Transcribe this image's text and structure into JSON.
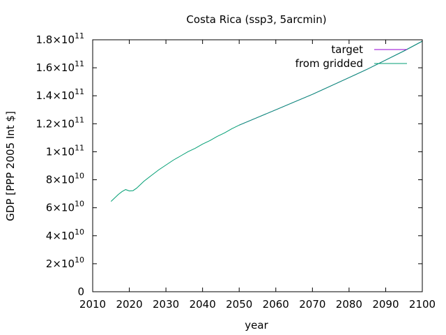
{
  "chart_data": {
    "type": "line",
    "title": "Costa Rica (ssp3, 5arcmin)",
    "xlabel": "year",
    "ylabel": "GDP [PPP 2005 Int $]",
    "xlim": [
      2010,
      2100
    ],
    "ylim": [
      0,
      180000000000
    ],
    "xticks": [
      2010,
      2020,
      2030,
      2040,
      2050,
      2060,
      2070,
      2080,
      2090,
      2100
    ],
    "yticks": [
      {
        "value": 0,
        "mant": "0",
        "exp": ""
      },
      {
        "value": 20000000000,
        "mant": "2×10",
        "exp": "10"
      },
      {
        "value": 40000000000,
        "mant": "4×10",
        "exp": "10"
      },
      {
        "value": 60000000000,
        "mant": "6×10",
        "exp": "10"
      },
      {
        "value": 80000000000,
        "mant": "8×10",
        "exp": "10"
      },
      {
        "value": 100000000000,
        "mant": "1×10",
        "exp": "11"
      },
      {
        "value": 120000000000,
        "mant": "1.2×10",
        "exp": "11"
      },
      {
        "value": 140000000000,
        "mant": "1.4×10",
        "exp": "11"
      },
      {
        "value": 160000000000,
        "mant": "1.6×10",
        "exp": "11"
      },
      {
        "value": 180000000000,
        "mant": "1.8×10",
        "exp": "11"
      }
    ],
    "grid": false,
    "legend_position": "top-right",
    "series": [
      {
        "name": "target",
        "color": "#9400d3",
        "x": [
          2050,
          2055,
          2060,
          2065,
          2070,
          2075,
          2080,
          2085,
          2090,
          2095,
          2100
        ],
        "y": [
          119000000000,
          124500000000,
          130000000000,
          135500000000,
          141000000000,
          147000000000,
          153000000000,
          159000000000,
          165500000000,
          172000000000,
          179000000000
        ]
      },
      {
        "name": "from gridded",
        "color": "#009e73",
        "x": [
          2015,
          2017,
          2018,
          2019,
          2020,
          2021,
          2022,
          2024,
          2026,
          2028,
          2030,
          2032,
          2034,
          2036,
          2038,
          2040,
          2042,
          2044,
          2046,
          2048,
          2050,
          2055,
          2060,
          2065,
          2070,
          2075,
          2080,
          2085,
          2090,
          2095,
          2100
        ],
        "y": [
          64500000000,
          69500000000,
          71500000000,
          73000000000,
          72000000000,
          72200000000,
          74000000000,
          79000000000,
          83000000000,
          87000000000,
          90500000000,
          94000000000,
          97000000000,
          100000000000,
          102500000000,
          105500000000,
          108000000000,
          111000000000,
          113500000000,
          116500000000,
          119000000000,
          124500000000,
          130000000000,
          135500000000,
          141000000000,
          147000000000,
          153000000000,
          159000000000,
          165500000000,
          172000000000,
          179000000000
        ]
      }
    ]
  }
}
